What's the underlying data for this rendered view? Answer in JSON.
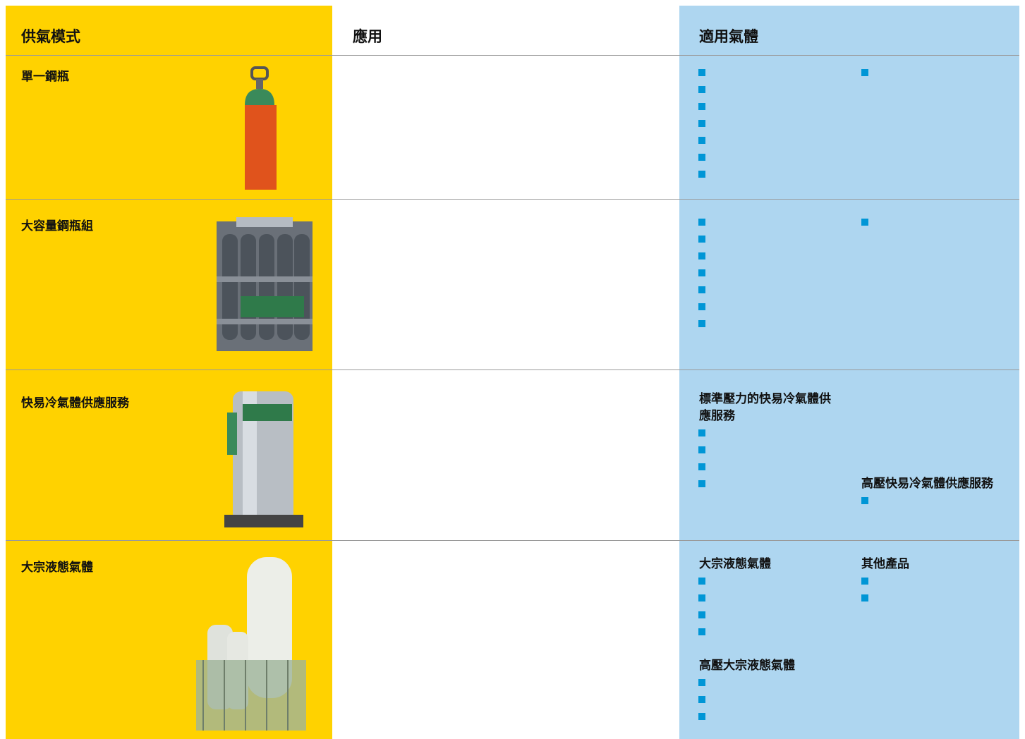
{
  "table": {
    "header": [
      "供氣模式",
      "應用",
      "適用氣體"
    ],
    "rows": [
      {
        "mode": "單一鋼瓶",
        "gas_groups": []
      },
      {
        "mode": "大容量鋼瓶組",
        "gas_groups": []
      },
      {
        "mode": "快易冷氣體供應服務",
        "gas_groups": [
          {
            "title": "標準壓力的快易冷氣體供應服務"
          },
          {
            "title": "高壓快易冷氣體供應服務"
          }
        ]
      },
      {
        "mode": "大宗液態氣體",
        "gas_groups": [
          {
            "title": "大宗液態氣體"
          },
          {
            "title": "其他產品"
          },
          {
            "title": "高壓大宗液態氣體"
          }
        ]
      }
    ]
  }
}
